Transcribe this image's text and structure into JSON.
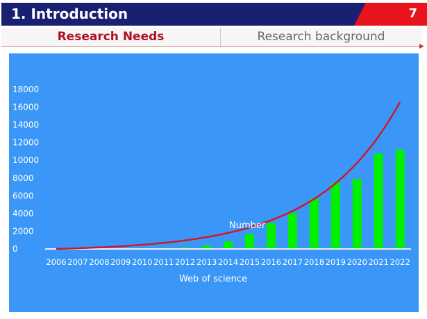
{
  "header": {
    "title": "1. Introduction",
    "page_number": "7"
  },
  "tabs": [
    {
      "label": "Research Needs",
      "active": true
    },
    {
      "label": "Research background",
      "active": false
    }
  ],
  "chart_data": {
    "type": "bar",
    "title": "",
    "xlabel": "Web of science",
    "ylabel": "",
    "series_label": "Number",
    "categories": [
      "2006",
      "2007",
      "2008",
      "2009",
      "2010",
      "2011",
      "2012",
      "2013",
      "2014",
      "2015",
      "2016",
      "2017",
      "2018",
      "2019",
      "2020",
      "2021",
      "2022"
    ],
    "values": [
      30,
      40,
      50,
      60,
      80,
      120,
      200,
      400,
      850,
      1700,
      2900,
      4050,
      5650,
      7450,
      7900,
      10750,
      11200
    ],
    "trend": {
      "type": "exponential",
      "start": 0,
      "end": 16600,
      "color": "#d0182a"
    },
    "ylim": [
      0,
      18000
    ],
    "yticks": [
      0,
      2000,
      4000,
      6000,
      8000,
      10000,
      12000,
      14000,
      16000,
      18000
    ],
    "bar_color": "#00f000",
    "background": "#3a97f8",
    "grid": false
  }
}
